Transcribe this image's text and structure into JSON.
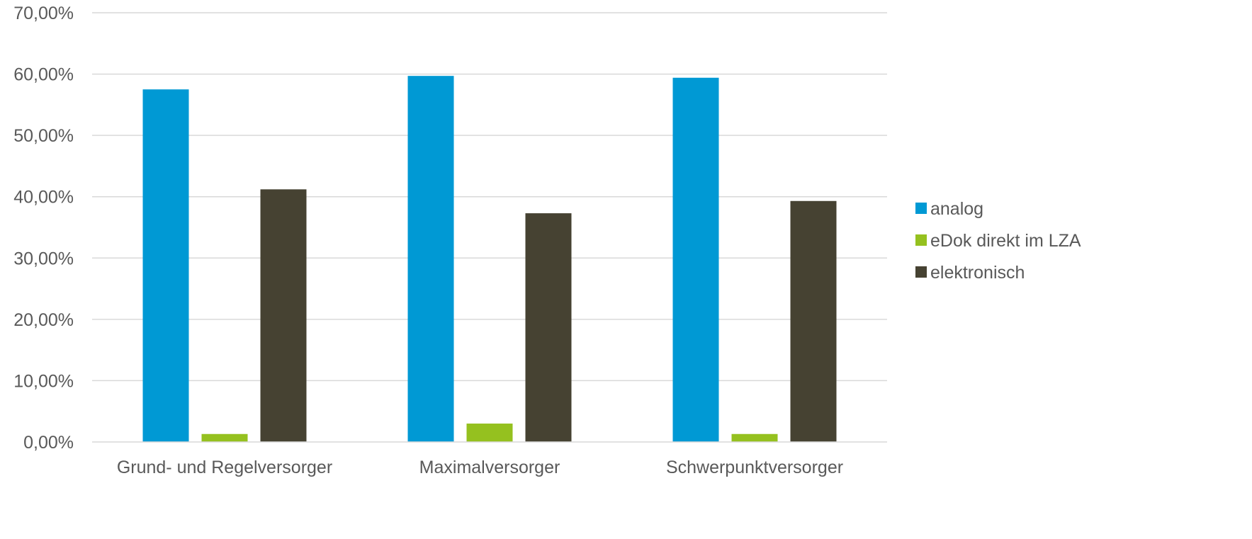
{
  "chart_data": {
    "type": "bar",
    "categories": [
      "Grund- und Regelversorger",
      "Maximalversorger",
      "Schwerpunktversorger"
    ],
    "series": [
      {
        "name": "analog",
        "color": "#0099d4",
        "values": [
          57.5,
          59.7,
          59.4
        ]
      },
      {
        "name": "eDok direkt im LZA",
        "color": "#95c11f",
        "values": [
          1.3,
          3.0,
          1.3
        ]
      },
      {
        "name": "elektronisch",
        "color": "#464232",
        "values": [
          41.2,
          37.3,
          39.3
        ]
      }
    ],
    "y_ticks": [
      "0,00%",
      "10,00%",
      "20,00%",
      "30,00%",
      "40,00%",
      "50,00%",
      "60,00%",
      "70,00%"
    ],
    "ylim": [
      0,
      70
    ],
    "grid": true,
    "legend_position": "right"
  }
}
